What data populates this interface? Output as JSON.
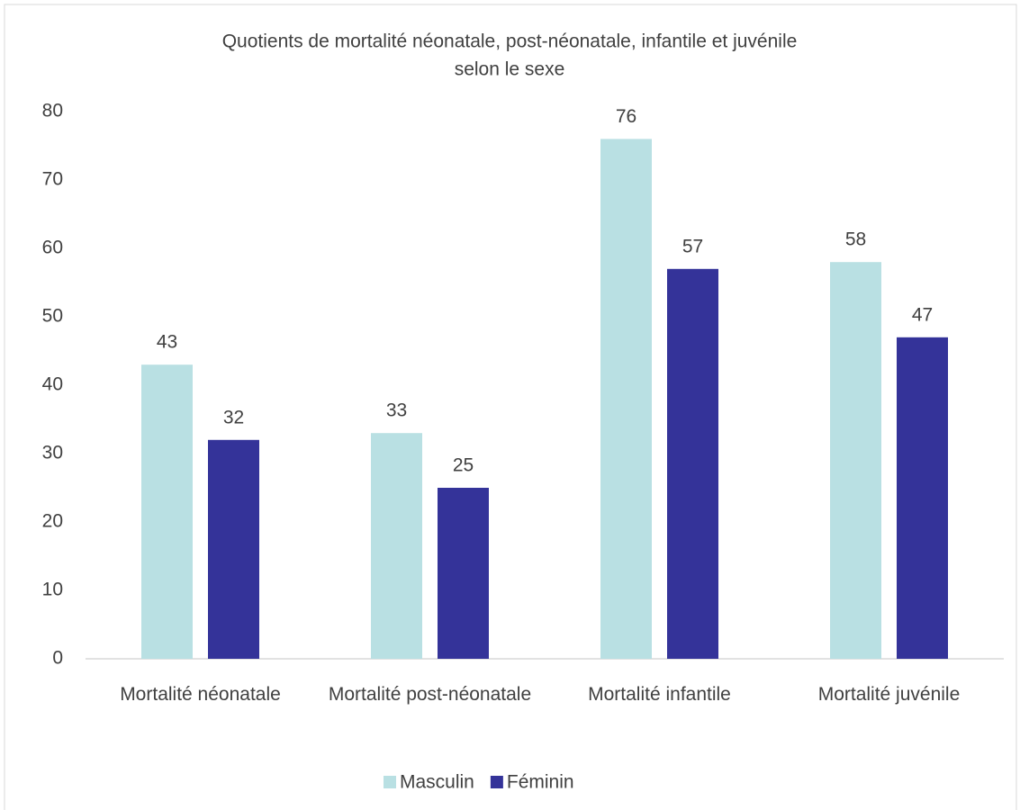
{
  "chart_data": {
    "type": "bar",
    "title": [
      "Quotients de mortalité néonatale, post-néonatale, infantile et juvénile",
      "selon le sexe"
    ],
    "categories": [
      "Mortalité néonatale",
      "Mortalité post-néonatale",
      "Mortalité infantile",
      "Mortalité juvénile"
    ],
    "series": [
      {
        "name": "Masculin",
        "color": "#b9e0e3",
        "values": [
          43,
          33,
          76,
          58
        ]
      },
      {
        "name": "Féminin",
        "color": "#343399",
        "values": [
          32,
          25,
          57,
          47
        ]
      }
    ],
    "ylim": [
      0,
      80
    ],
    "yticks": [
      0,
      10,
      20,
      30,
      40,
      50,
      60,
      70,
      80
    ],
    "grid": false,
    "legend": "bottom"
  }
}
